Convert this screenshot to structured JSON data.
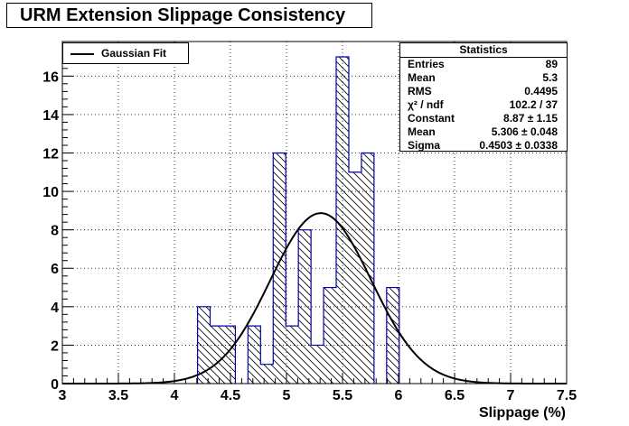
{
  "title": "URM Extension Slippage Consistency",
  "legend": {
    "entries": [
      {
        "label": "Gaussian Fit",
        "color": "#000000"
      }
    ]
  },
  "stats": {
    "header": "Statistics",
    "rows": [
      {
        "label": "Entries",
        "value": "89"
      },
      {
        "label": "Mean",
        "value": "5.3"
      },
      {
        "label": "RMS",
        "value": "0.4495"
      },
      {
        "label": "χ² / ndf",
        "value": "102.2 / 37"
      },
      {
        "label": "Constant",
        "value": "8.87 ± 1.15"
      },
      {
        "label": "Mean",
        "value": "5.306 ± 0.048"
      },
      {
        "label": "Sigma",
        "value": "0.4503 ± 0.0338"
      }
    ]
  },
  "colors": {
    "histogram_line": "#0000aa",
    "hatch": "#000000",
    "fit": "#000000",
    "grid": "#000000"
  },
  "chart_data": {
    "type": "bar",
    "title": "URM Extension Slippage Consistency",
    "xlabel": "Slippage (%)",
    "ylabel": "",
    "xlim": [
      3,
      7.5
    ],
    "ylim": [
      0,
      17.8
    ],
    "xticks": [
      "3",
      "3.5",
      "4",
      "4.5",
      "5",
      "5.5",
      "6",
      "6.5",
      "7",
      "7.5"
    ],
    "yticks": [
      "0",
      "2",
      "4",
      "6",
      "8",
      "10",
      "12",
      "14",
      "16"
    ],
    "grid": true,
    "legend_position": "top-left",
    "bin_width": 0.1125,
    "series": [
      {
        "name": "",
        "bins": [
          {
            "x": 4.2625,
            "value": 4
          },
          {
            "x": 4.375,
            "value": 3
          },
          {
            "x": 4.4875,
            "value": 3
          },
          {
            "x": 4.7125,
            "value": 3
          },
          {
            "x": 4.825,
            "value": 1
          },
          {
            "x": 4.9375,
            "value": 12
          },
          {
            "x": 5.05,
            "value": 3
          },
          {
            "x": 5.1625,
            "value": 8
          },
          {
            "x": 5.275,
            "value": 2
          },
          {
            "x": 5.3875,
            "value": 5
          },
          {
            "x": 5.5,
            "value": 17
          },
          {
            "x": 5.6125,
            "value": 11
          },
          {
            "x": 5.725,
            "value": 12
          },
          {
            "x": 5.95,
            "value": 5
          }
        ]
      },
      {
        "name": "Gaussian Fit",
        "function": "gaussian",
        "constant": 8.87,
        "mean": 5.306,
        "sigma": 0.4503,
        "range": [
          3,
          7.5
        ]
      }
    ]
  }
}
